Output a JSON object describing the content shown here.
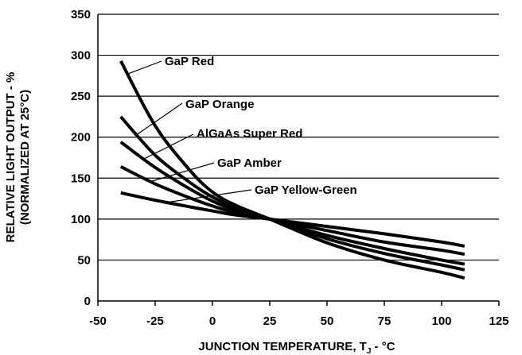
{
  "chart_data": {
    "type": "line",
    "xlabel": "JUNCTION TEMPERATURE, T",
    "xlabel_sub": "J",
    "xlabel_suffix": " - °C",
    "ylabel_line1": "RELATIVE LIGHT OUTPUT - %",
    "ylabel_line2": "(NORMALIZED AT 25°C)",
    "xlim": [
      -50,
      125
    ],
    "ylim": [
      0,
      350
    ],
    "xticks": [
      "-50",
      "-25",
      "0",
      "25",
      "50",
      "75",
      "100",
      "125"
    ],
    "yticks": [
      "0",
      "50",
      "100",
      "150",
      "200",
      "250",
      "300",
      "350"
    ],
    "grid": "horizontal",
    "legend": "inline labels with leader lines",
    "series": [
      {
        "name": "GaP Red",
        "x": [
          -40,
          -25,
          -10,
          0,
          10,
          25,
          50,
          75,
          100,
          110
        ],
        "y": [
          293,
          214,
          160,
          133,
          117,
          100,
          71,
          50,
          35,
          28
        ]
      },
      {
        "name": "GaP Orange",
        "x": [
          -40,
          -25,
          -10,
          0,
          10,
          25,
          50,
          75,
          100,
          110
        ],
        "y": [
          225,
          178,
          145,
          127,
          114,
          100,
          76,
          58,
          44,
          38
        ]
      },
      {
        "name": "AlGaAs Super Red",
        "x": [
          -40,
          -25,
          -10,
          0,
          10,
          25,
          50,
          75,
          100,
          110
        ],
        "y": [
          194,
          163,
          137,
          122,
          111,
          100,
          80,
          64,
          50,
          45
        ]
      },
      {
        "name": "GaP Amber",
        "x": [
          -40,
          -25,
          -10,
          0,
          10,
          25,
          50,
          75,
          100,
          110
        ],
        "y": [
          164,
          143,
          126,
          116,
          108,
          100,
          86,
          72,
          62,
          57
        ]
      },
      {
        "name": "GaP Yellow-Green",
        "x": [
          -40,
          -25,
          -10,
          0,
          10,
          25,
          50,
          75,
          100,
          110
        ],
        "y": [
          132,
          123,
          115,
          110,
          105,
          100,
          91,
          82,
          72,
          67
        ]
      }
    ]
  }
}
